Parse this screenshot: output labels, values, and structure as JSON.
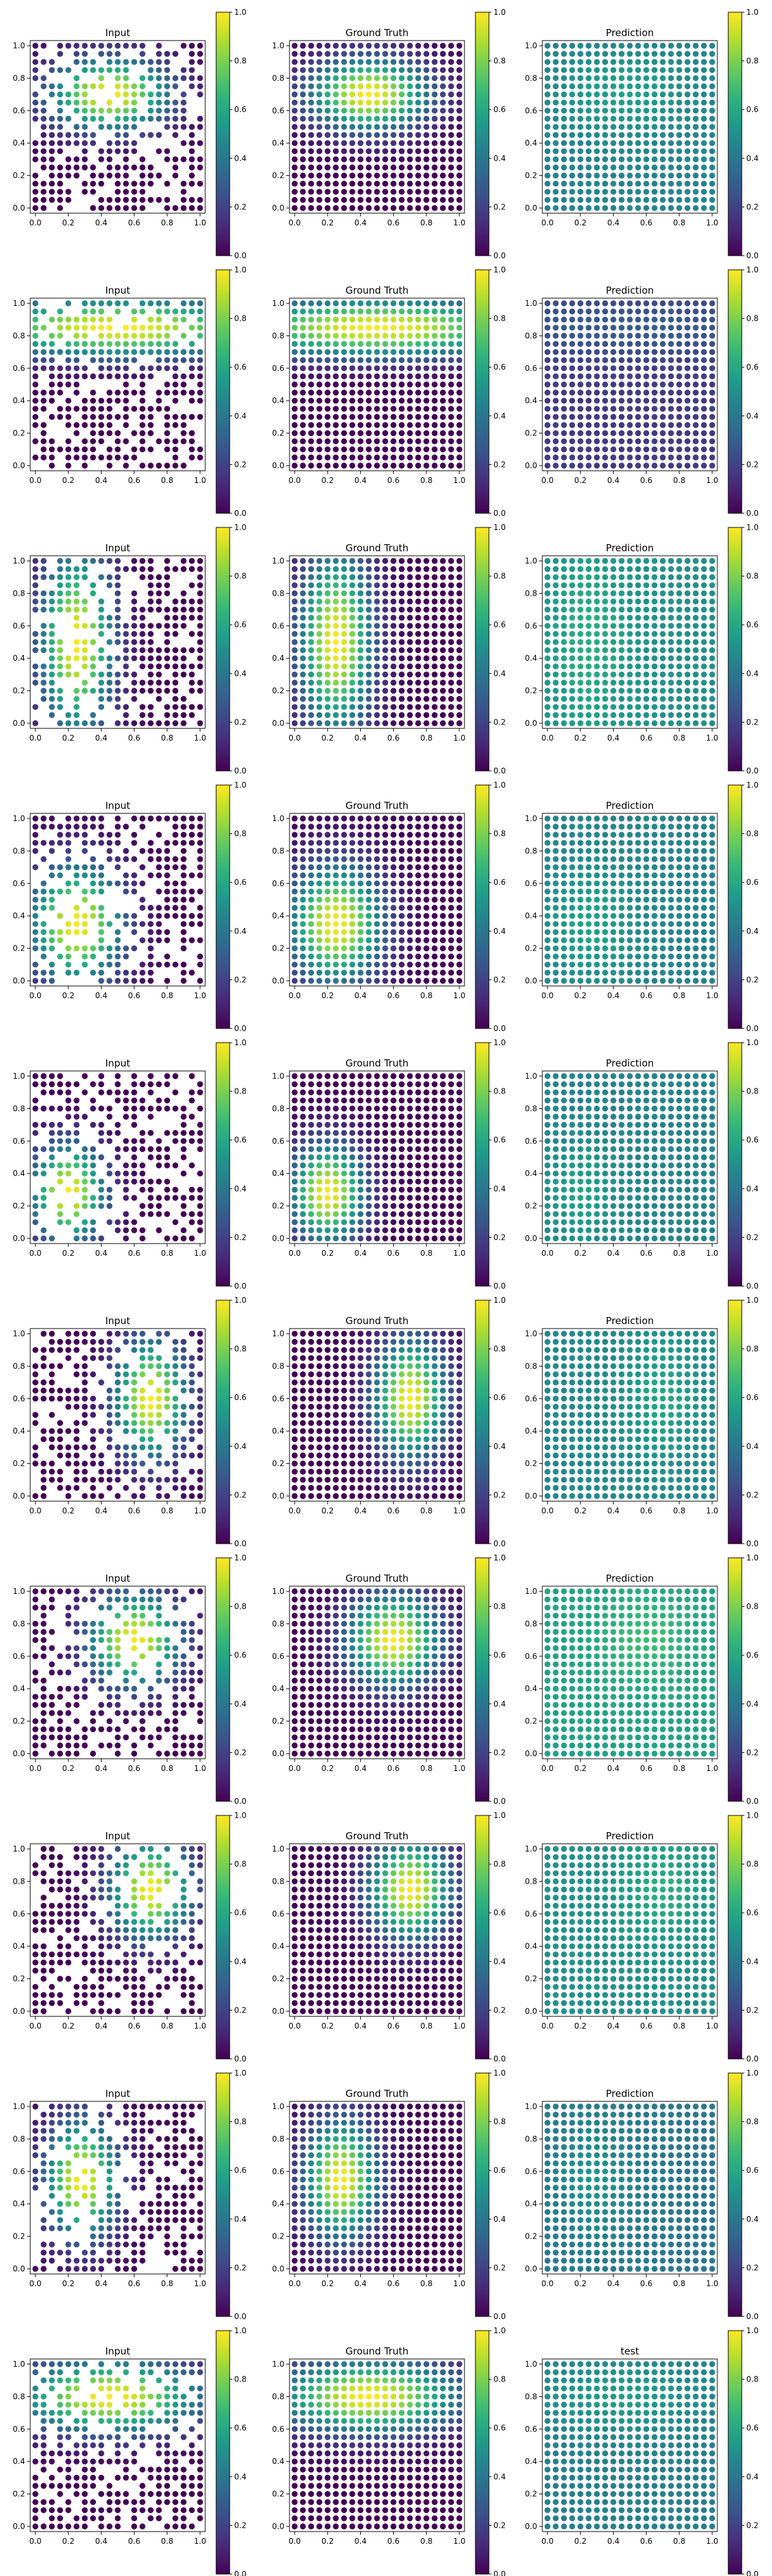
{
  "chart_data": {
    "type": "scatter",
    "layout": {
      "rows": 10,
      "columns": 3
    },
    "colormap": "viridis",
    "grid": false,
    "panel_xlim": [
      0,
      1
    ],
    "panel_ylim": [
      0,
      1
    ],
    "panel_ticks": [
      "0.0",
      "0.2",
      "0.4",
      "0.6",
      "0.8",
      "1.0"
    ],
    "colorbar_range": [
      0,
      1
    ],
    "colorbar_ticks": [
      "0.0",
      "0.2",
      "0.4",
      "0.6",
      "0.8",
      "1.0"
    ],
    "point_grid": {
      "count_per_axis": 21,
      "x": [
        0,
        1
      ],
      "y": [
        0,
        1
      ]
    },
    "rows": [
      {
        "titles": [
          "Input",
          "Ground Truth",
          "Prediction"
        ],
        "peak": [
          0.45,
          0.7
        ],
        "spread": [
          0.36,
          0.22
        ],
        "pred_level": 0.5,
        "input_missing_fraction": 0.35
      },
      {
        "titles": [
          "Input",
          "Ground Truth",
          "Prediction"
        ],
        "peak": [
          0.5,
          0.85
        ],
        "spread": [
          0.9,
          0.18
        ],
        "pred_level": 0.22,
        "input_missing_fraction": 0.3
      },
      {
        "titles": [
          "Input",
          "Ground Truth",
          "Prediction"
        ],
        "peak": [
          0.25,
          0.5
        ],
        "spread": [
          0.22,
          0.55
        ],
        "pred_level": 0.55,
        "input_missing_fraction": 0.3
      },
      {
        "titles": [
          "Input",
          "Ground Truth",
          "Prediction"
        ],
        "peak": [
          0.25,
          0.35
        ],
        "spread": [
          0.28,
          0.36
        ],
        "pred_level": 0.5,
        "input_missing_fraction": 0.32
      },
      {
        "titles": [
          "Input",
          "Ground Truth",
          "Prediction"
        ],
        "peak": [
          0.2,
          0.28
        ],
        "spread": [
          0.22,
          0.3
        ],
        "pred_level": 0.5,
        "input_missing_fraction": 0.35
      },
      {
        "titles": [
          "Input",
          "Ground Truth",
          "Prediction"
        ],
        "peak": [
          0.7,
          0.6
        ],
        "spread": [
          0.22,
          0.36
        ],
        "pred_level": 0.52,
        "input_missing_fraction": 0.33
      },
      {
        "titles": [
          "Input",
          "Ground Truth",
          "Prediction"
        ],
        "peak": [
          0.6,
          0.7
        ],
        "spread": [
          0.28,
          0.28
        ],
        "pred_level": 0.62,
        "input_missing_fraction": 0.34
      },
      {
        "titles": [
          "Input",
          "Ground Truth",
          "Prediction"
        ],
        "peak": [
          0.7,
          0.75
        ],
        "spread": [
          0.25,
          0.3
        ],
        "pred_level": 0.55,
        "input_missing_fraction": 0.33
      },
      {
        "titles": [
          "Input",
          "Ground Truth",
          "Prediction"
        ],
        "peak": [
          0.28,
          0.55
        ],
        "spread": [
          0.22,
          0.36
        ],
        "pred_level": 0.45,
        "input_missing_fraction": 0.33
      },
      {
        "titles": [
          "Input",
          "Ground Truth",
          "test"
        ],
        "peak": [
          0.45,
          0.8
        ],
        "spread": [
          0.55,
          0.22
        ],
        "pred_level": 0.48,
        "input_missing_fraction": 0.3
      }
    ]
  }
}
